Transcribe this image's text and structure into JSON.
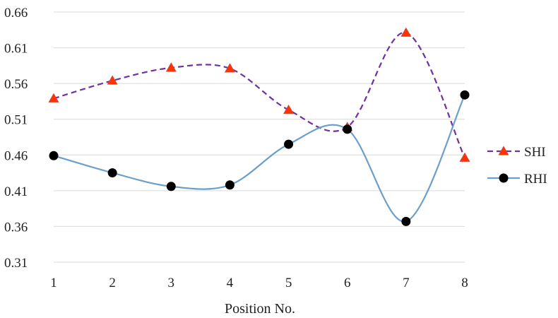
{
  "chart_data": {
    "type": "line",
    "title": "",
    "xlabel": "Position No.",
    "ylabel": "",
    "x": [
      1,
      2,
      3,
      4,
      5,
      6,
      7,
      8
    ],
    "ylim": [
      0.31,
      0.66
    ],
    "yticks": [
      "0.31",
      "0.36",
      "0.41",
      "0.46",
      "0.51",
      "0.56",
      "0.61",
      "0.66"
    ],
    "xticks": [
      "1",
      "2",
      "3",
      "4",
      "5",
      "6",
      "7",
      "8"
    ],
    "grid": true,
    "legend_position": "right",
    "series": [
      {
        "name": "SHI",
        "values": [
          0.539,
          0.564,
          0.582,
          0.581,
          0.523,
          0.499,
          0.631,
          0.456
        ],
        "color": "#7030a0",
        "marker_color": "#ff3300",
        "marker": "triangle",
        "line_style": "dashed"
      },
      {
        "name": "RHI",
        "values": [
          0.459,
          0.435,
          0.416,
          0.418,
          0.475,
          0.496,
          0.367,
          0.544
        ],
        "color": "#6a9fcb",
        "marker_color": "#000000",
        "marker": "circle",
        "line_style": "solid"
      }
    ]
  }
}
